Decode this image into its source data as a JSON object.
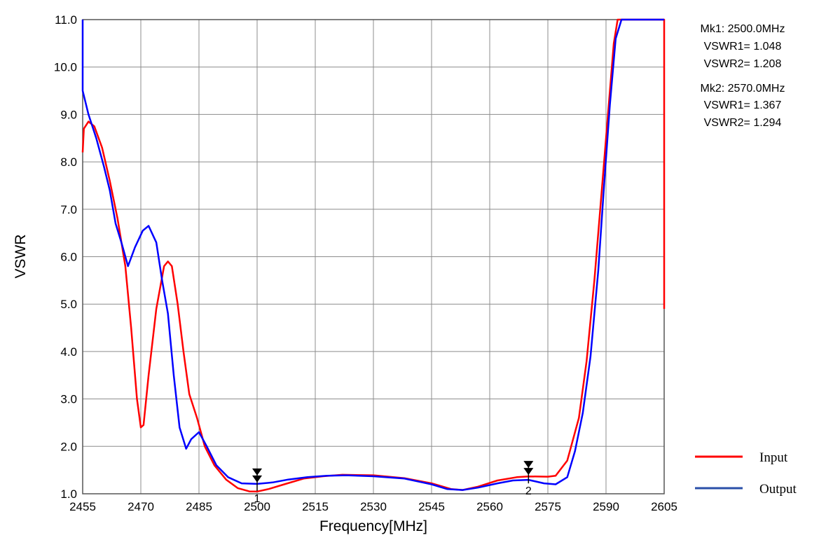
{
  "chart_data": {
    "type": "line",
    "title": "",
    "xlabel": "Frequency[MHz]",
    "ylabel": "VSWR",
    "xlim": [
      2455,
      2605
    ],
    "ylim": [
      1.0,
      11.0
    ],
    "grid": true,
    "x_ticks": [
      2455,
      2470,
      2485,
      2500,
      2515,
      2530,
      2545,
      2560,
      2575,
      2590,
      2605
    ],
    "y_ticks": [
      "1.0",
      "2.0",
      "3.0",
      "4.0",
      "5.0",
      "6.0",
      "7.0",
      "8.0",
      "9.0",
      "10.0",
      "11.0"
    ],
    "legend_position": "bottom-right",
    "series": [
      {
        "name": "Input",
        "color": "#ff0000",
        "points": [
          [
            2455,
            8.2
          ],
          [
            2455.3,
            8.7
          ],
          [
            2456.5,
            8.85
          ],
          [
            2458,
            8.75
          ],
          [
            2460,
            8.3
          ],
          [
            2462,
            7.6
          ],
          [
            2464,
            6.8
          ],
          [
            2466,
            5.8
          ],
          [
            2467.5,
            4.5
          ],
          [
            2469,
            3.0
          ],
          [
            2470,
            2.4
          ],
          [
            2470.7,
            2.45
          ],
          [
            2472,
            3.5
          ],
          [
            2474,
            4.9
          ],
          [
            2476,
            5.8
          ],
          [
            2477,
            5.9
          ],
          [
            2478,
            5.8
          ],
          [
            2479.5,
            5.0
          ],
          [
            2481,
            4.0
          ],
          [
            2482.5,
            3.1
          ],
          [
            2484.5,
            2.6
          ],
          [
            2486.5,
            2.0
          ],
          [
            2489,
            1.6
          ],
          [
            2492,
            1.3
          ],
          [
            2495,
            1.12
          ],
          [
            2498,
            1.05
          ],
          [
            2500,
            1.048
          ],
          [
            2503,
            1.1
          ],
          [
            2507,
            1.2
          ],
          [
            2512,
            1.32
          ],
          [
            2517,
            1.37
          ],
          [
            2522,
            1.4
          ],
          [
            2530,
            1.39
          ],
          [
            2538,
            1.33
          ],
          [
            2545,
            1.22
          ],
          [
            2550,
            1.1
          ],
          [
            2553,
            1.08
          ],
          [
            2557,
            1.15
          ],
          [
            2562,
            1.28
          ],
          [
            2567,
            1.35
          ],
          [
            2570,
            1.367
          ],
          [
            2575,
            1.36
          ],
          [
            2577,
            1.38
          ],
          [
            2580,
            1.7
          ],
          [
            2583,
            2.6
          ],
          [
            2585,
            3.8
          ],
          [
            2587,
            5.5
          ],
          [
            2589,
            7.5
          ],
          [
            2590.5,
            9.0
          ],
          [
            2592,
            10.5
          ],
          [
            2593,
            11.0
          ],
          [
            2605,
            11.0
          ],
          [
            2605,
            4.9
          ]
        ]
      },
      {
        "name": "Output",
        "color": "#0000ff",
        "points": [
          [
            2455,
            11.0
          ],
          [
            2455,
            9.5
          ],
          [
            2456.5,
            9.0
          ],
          [
            2458.5,
            8.5
          ],
          [
            2460.5,
            7.9
          ],
          [
            2462,
            7.4
          ],
          [
            2463.5,
            6.7
          ],
          [
            2465,
            6.3
          ],
          [
            2466.7,
            5.8
          ],
          [
            2468.5,
            6.2
          ],
          [
            2470.5,
            6.55
          ],
          [
            2472,
            6.65
          ],
          [
            2474,
            6.3
          ],
          [
            2475.5,
            5.5
          ],
          [
            2477,
            4.8
          ],
          [
            2478.5,
            3.5
          ],
          [
            2480,
            2.4
          ],
          [
            2481.7,
            1.95
          ],
          [
            2483,
            2.15
          ],
          [
            2485,
            2.3
          ],
          [
            2487,
            2.0
          ],
          [
            2489.5,
            1.6
          ],
          [
            2492.5,
            1.35
          ],
          [
            2496,
            1.22
          ],
          [
            2500,
            1.208
          ],
          [
            2504,
            1.24
          ],
          [
            2508,
            1.3
          ],
          [
            2513,
            1.35
          ],
          [
            2518,
            1.38
          ],
          [
            2523,
            1.39
          ],
          [
            2530,
            1.37
          ],
          [
            2538,
            1.32
          ],
          [
            2545,
            1.2
          ],
          [
            2549,
            1.1
          ],
          [
            2553,
            1.08
          ],
          [
            2557,
            1.13
          ],
          [
            2562,
            1.22
          ],
          [
            2566,
            1.28
          ],
          [
            2570,
            1.294
          ],
          [
            2574,
            1.22
          ],
          [
            2577,
            1.2
          ],
          [
            2580,
            1.35
          ],
          [
            2582,
            1.9
          ],
          [
            2584,
            2.7
          ],
          [
            2586,
            3.9
          ],
          [
            2588,
            5.7
          ],
          [
            2589.5,
            7.5
          ],
          [
            2591,
            9.2
          ],
          [
            2592.5,
            10.6
          ],
          [
            2594,
            11.0
          ],
          [
            2605,
            11.0
          ]
        ]
      }
    ],
    "markers": [
      {
        "label": "1",
        "freq": 2500.0,
        "value": 1.208
      },
      {
        "label": "2",
        "freq": 2570.0,
        "value": 1.367
      }
    ],
    "annotations": [
      {
        "heading": "Mk1: 2500.0MHz",
        "line1": "VSWR1= 1.048",
        "line2": "VSWR2= 1.208"
      },
      {
        "heading": "Mk2: 2570.0MHz",
        "line1": "VSWR1= 1.367",
        "line2": "VSWR2= 1.294"
      }
    ]
  }
}
